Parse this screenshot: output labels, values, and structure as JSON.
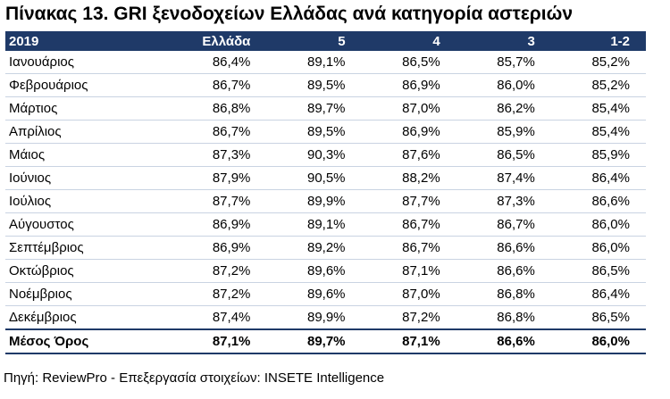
{
  "title": "Πίνακας 13. GRI ξενοδοχείων Ελλάδας ανά κατηγορία αστεριών",
  "columns": [
    "2019",
    "Ελλάδα",
    "5",
    "4",
    "3",
    "1-2"
  ],
  "rows": [
    [
      "Ιανουάριος",
      "86,4%",
      "89,1%",
      "86,5%",
      "85,7%",
      "85,2%"
    ],
    [
      "Φεβρουάριος",
      "86,7%",
      "89,5%",
      "86,9%",
      "86,0%",
      "85,2%"
    ],
    [
      "Μάρτιος",
      "86,8%",
      "89,7%",
      "87,0%",
      "86,2%",
      "85,4%"
    ],
    [
      "Απρίλιος",
      "86,7%",
      "89,5%",
      "86,9%",
      "85,9%",
      "85,4%"
    ],
    [
      "Μάιος",
      "87,3%",
      "90,3%",
      "87,6%",
      "86,5%",
      "85,9%"
    ],
    [
      "Ιούνιος",
      "87,9%",
      "90,5%",
      "88,2%",
      "87,4%",
      "86,4%"
    ],
    [
      "Ιούλιος",
      "87,7%",
      "89,9%",
      "87,7%",
      "87,3%",
      "86,6%"
    ],
    [
      "Αύγουστος",
      "86,9%",
      "89,1%",
      "86,7%",
      "86,7%",
      "86,0%"
    ],
    [
      "Σεπτέμβριος",
      "86,9%",
      "89,2%",
      "86,7%",
      "86,6%",
      "86,0%"
    ],
    [
      "Οκτώβριος",
      "87,2%",
      "89,6%",
      "87,1%",
      "86,6%",
      "86,5%"
    ],
    [
      "Νοέμβριος",
      "87,2%",
      "89,6%",
      "87,0%",
      "86,8%",
      "86,4%"
    ],
    [
      "Δεκέμβριος",
      "87,4%",
      "89,9%",
      "87,2%",
      "86,8%",
      "86,5%"
    ]
  ],
  "average_row": [
    "Μέσος Όρος",
    "87,1%",
    "89,7%",
    "87,1%",
    "86,6%",
    "86,0%"
  ],
  "source": "Πηγή:  ReviewPro - Επεξεργασία στοιχείων: INSETE Intelligence",
  "colors": {
    "header_bg": "#1f3a68",
    "header_text": "#ffffff",
    "row_divider": "#c9d3e2"
  }
}
